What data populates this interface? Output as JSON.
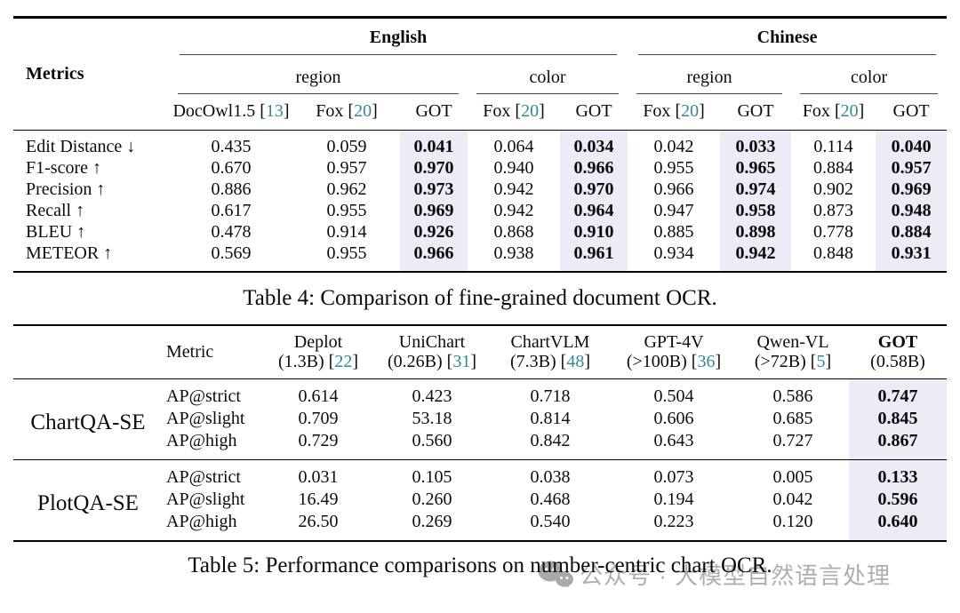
{
  "colors": {
    "citation": "#2f8a96",
    "got_highlight": "#ecebf6",
    "watermark_gray": "#aeaeae",
    "rule": "#000000"
  },
  "table4": {
    "caption": "Table 4: Comparison of fine-grained document OCR.",
    "metrics_header": "Metrics",
    "groups": [
      {
        "label": "English",
        "subgroups": [
          {
            "label": "region"
          },
          {
            "label": "color"
          }
        ]
      },
      {
        "label": "Chinese",
        "subgroups": [
          {
            "label": "region"
          },
          {
            "label": "color"
          }
        ]
      }
    ],
    "columns": [
      {
        "name": "DocOwl1.5",
        "cite": "13"
      },
      {
        "name": "Fox",
        "cite": "20"
      },
      {
        "name": "GOT"
      },
      {
        "name": "Fox",
        "cite": "20"
      },
      {
        "name": "GOT"
      },
      {
        "name": "Fox",
        "cite": "20"
      },
      {
        "name": "GOT"
      },
      {
        "name": "Fox",
        "cite": "20"
      },
      {
        "name": "GOT"
      }
    ],
    "highlight_cols": [
      2,
      4,
      6,
      8
    ],
    "rows": [
      {
        "metric": "Edit Distance ↓",
        "values": [
          "0.435",
          "0.059",
          "0.041",
          "0.064",
          "0.034",
          "0.042",
          "0.033",
          "0.114",
          "0.040"
        ]
      },
      {
        "metric": "F1-score ↑",
        "values": [
          "0.670",
          "0.957",
          "0.970",
          "0.940",
          "0.966",
          "0.955",
          "0.965",
          "0.884",
          "0.957"
        ]
      },
      {
        "metric": "Precision ↑",
        "values": [
          "0.886",
          "0.962",
          "0.973",
          "0.942",
          "0.970",
          "0.966",
          "0.974",
          "0.902",
          "0.969"
        ]
      },
      {
        "metric": "Recall ↑",
        "values": [
          "0.617",
          "0.955",
          "0.969",
          "0.942",
          "0.964",
          "0.947",
          "0.958",
          "0.873",
          "0.948"
        ]
      },
      {
        "metric": "BLEU ↑",
        "values": [
          "0.478",
          "0.914",
          "0.926",
          "0.868",
          "0.910",
          "0.885",
          "0.898",
          "0.778",
          "0.884"
        ]
      },
      {
        "metric": "METEOR ↑",
        "values": [
          "0.569",
          "0.955",
          "0.966",
          "0.938",
          "0.961",
          "0.934",
          "0.942",
          "0.848",
          "0.931"
        ]
      }
    ]
  },
  "table5": {
    "caption": "Table 5: Performance comparisons on number-centric chart OCR.",
    "metric_header": "Metric",
    "columns": [
      {
        "name": "Deplot",
        "size": "(1.3B)",
        "cite": "22"
      },
      {
        "name": "UniChart",
        "size": "(0.26B)",
        "cite": "31"
      },
      {
        "name": "ChartVLM",
        "size": "(7.3B)",
        "cite": "48"
      },
      {
        "name": "GPT-4V",
        "size": "(>100B)",
        "cite": "36"
      },
      {
        "name": "Qwen-VL",
        "size": "(>72B)",
        "cite": "5"
      },
      {
        "name": "GOT",
        "size": "(0.58B)",
        "bold": true
      }
    ],
    "highlight_col": 5,
    "groups": [
      {
        "label": "ChartQA-SE",
        "rows": [
          {
            "metric": "AP@strict",
            "values": [
              "0.614",
              "0.423",
              "0.718",
              "0.504",
              "0.586",
              "0.747"
            ]
          },
          {
            "metric": "AP@slight",
            "values": [
              "0.709",
              "53.18",
              "0.814",
              "0.606",
              "0.685",
              "0.845"
            ]
          },
          {
            "metric": "AP@high",
            "values": [
              "0.729",
              "0.560",
              "0.842",
              "0.643",
              "0.727",
              "0.867"
            ]
          }
        ]
      },
      {
        "label": "PlotQA-SE",
        "rows": [
          {
            "metric": "AP@strict",
            "values": [
              "0.031",
              "0.105",
              "0.038",
              "0.073",
              "0.005",
              "0.133"
            ]
          },
          {
            "metric": "AP@slight",
            "values": [
              "16.49",
              "0.260",
              "0.468",
              "0.194",
              "0.042",
              "0.596"
            ]
          },
          {
            "metric": "AP@high",
            "values": [
              "26.50",
              "0.269",
              "0.540",
              "0.223",
              "0.120",
              "0.640"
            ]
          }
        ]
      }
    ]
  },
  "watermark": {
    "icon": "wechat-icon",
    "text": "公众号 · 大模型自然语言处理"
  }
}
